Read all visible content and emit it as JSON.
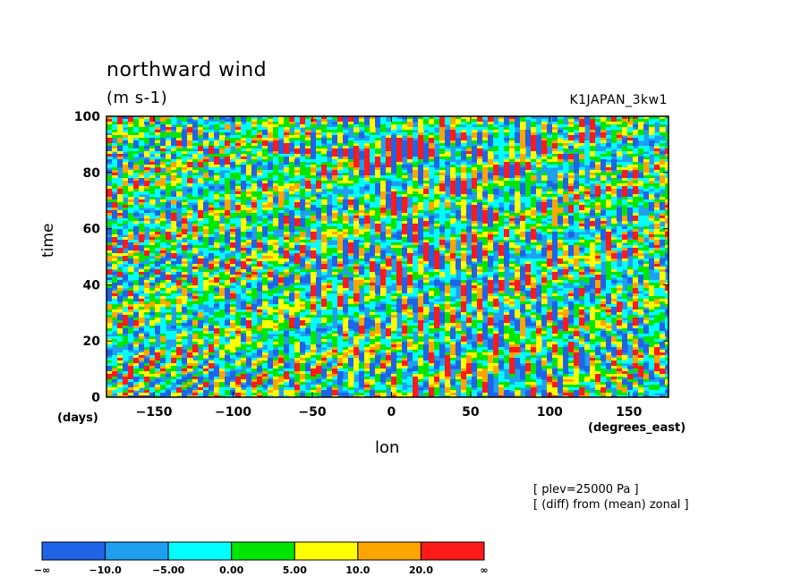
{
  "chart_data": {
    "type": "heatmap",
    "title": "northward wind",
    "subtitle": "(m s-1)",
    "run_label": "K1JAPAN_3kw1",
    "xlabel": "lon",
    "xunit": "(degrees_east)",
    "ylabel": "time",
    "yunit": "(days)",
    "xlim": [
      -180,
      175
    ],
    "ylim": [
      0,
      100
    ],
    "xticks": [
      -150,
      -100,
      -50,
      0,
      50,
      100,
      150
    ],
    "yticks": [
      0,
      20,
      40,
      60,
      80,
      100
    ],
    "notes": [
      "[ plev=25000 Pa ]",
      "[ (diff) from (mean) zonal ]"
    ],
    "colorbar": {
      "levels": [
        "-∞",
        "-10.0",
        "-5.00",
        "0.00",
        "5.00",
        "10.0",
        "20.0",
        "∞"
      ],
      "colors": [
        "#1e64e6",
        "#1e9ff0",
        "#00ffff",
        "#00e600",
        "#ffff00",
        "#ffa500",
        "#ff1a1a"
      ]
    }
  }
}
